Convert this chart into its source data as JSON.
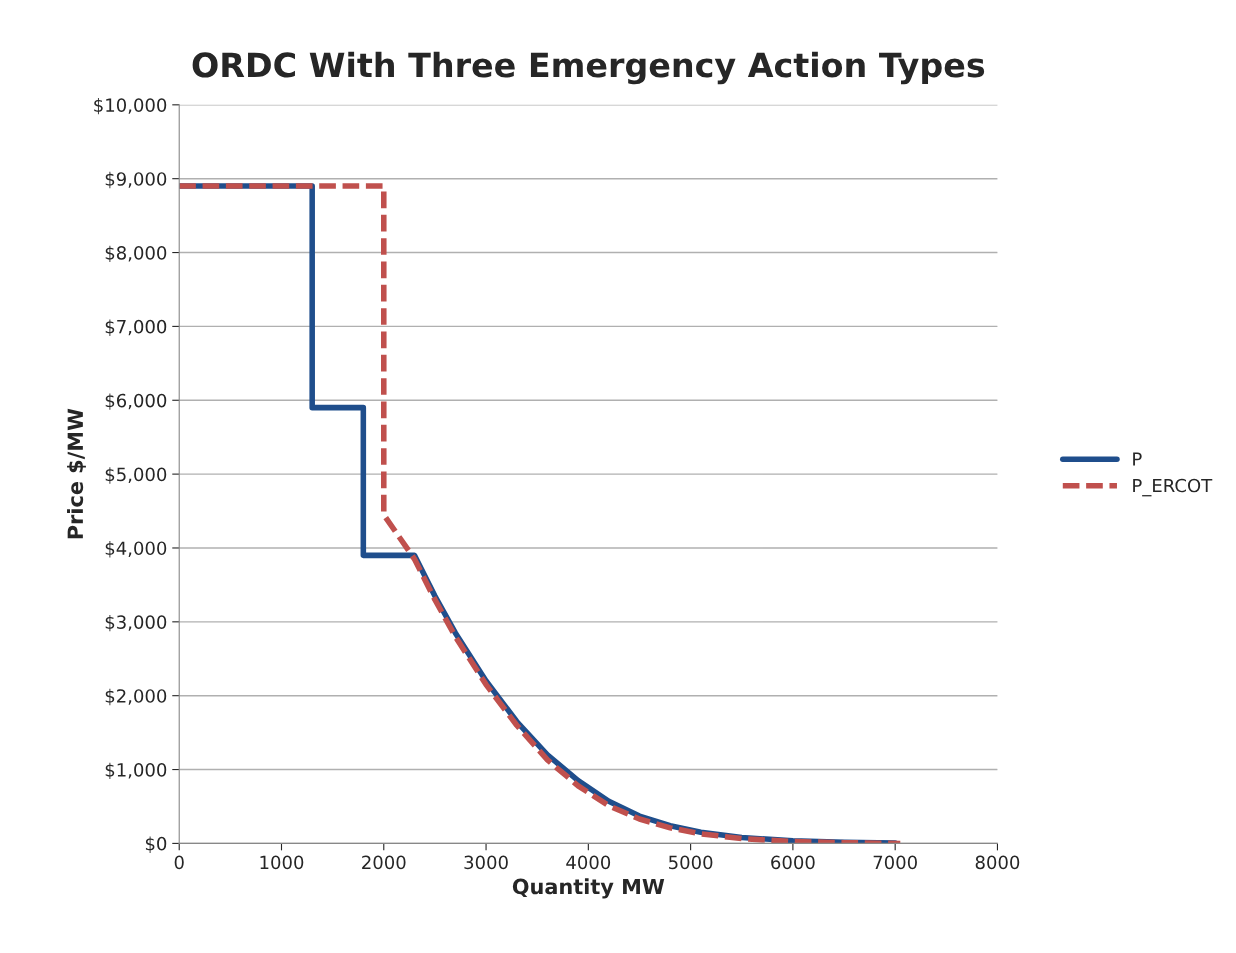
{
  "chart_data": {
    "type": "line",
    "title": "ORDC With Three Emergency Action Types",
    "xlabel": "Quantity MW",
    "ylabel": "Price $/MW",
    "xlim": [
      0,
      8000
    ],
    "xticks": [
      0,
      1000,
      2000,
      3000,
      4000,
      5000,
      6000,
      7000,
      8000
    ],
    "ylim": [
      0,
      10000
    ],
    "yticks": [
      {
        "value": 0,
        "label": "$0"
      },
      {
        "value": 1000,
        "label": "$1,000"
      },
      {
        "value": 2000,
        "label": "$2,000"
      },
      {
        "value": 3000,
        "label": "$3,000"
      },
      {
        "value": 4000,
        "label": "$4,000"
      },
      {
        "value": 5000,
        "label": "$5,000"
      },
      {
        "value": 6000,
        "label": "$6,000"
      },
      {
        "value": 7000,
        "label": "$7,000"
      },
      {
        "value": 8000,
        "label": "$8,000"
      },
      {
        "value": 9000,
        "label": "$9,000"
      },
      {
        "value": 10000,
        "label": "$10,000"
      }
    ],
    "grid": "y",
    "legend": "right",
    "series": [
      {
        "name": "P",
        "color": "#1f4e8c",
        "line_style": "solid",
        "x": [
          0,
          1300,
          1300,
          1800,
          1800,
          2300,
          2500,
          2700,
          3000,
          3300,
          3600,
          3900,
          4200,
          4500,
          4800,
          5100,
          5500,
          6000,
          6500,
          7000
        ],
        "values": [
          8900,
          8900,
          5900,
          5900,
          3900,
          3900,
          3350,
          2850,
          2200,
          1650,
          1200,
          850,
          570,
          370,
          240,
          150,
          80,
          35,
          15,
          5
        ]
      },
      {
        "name": "P_ERCOT",
        "color": "#c0504d",
        "line_style": "dashed",
        "x": [
          0,
          2000,
          2000,
          2300,
          2500,
          2700,
          3000,
          3300,
          3600,
          3900,
          4200,
          4500,
          4800,
          5100,
          5500,
          6000,
          6500,
          7050
        ],
        "values": [
          8900,
          8900,
          4450,
          3850,
          3300,
          2800,
          2150,
          1600,
          1130,
          780,
          510,
          330,
          210,
          130,
          65,
          25,
          10,
          0
        ]
      }
    ]
  }
}
